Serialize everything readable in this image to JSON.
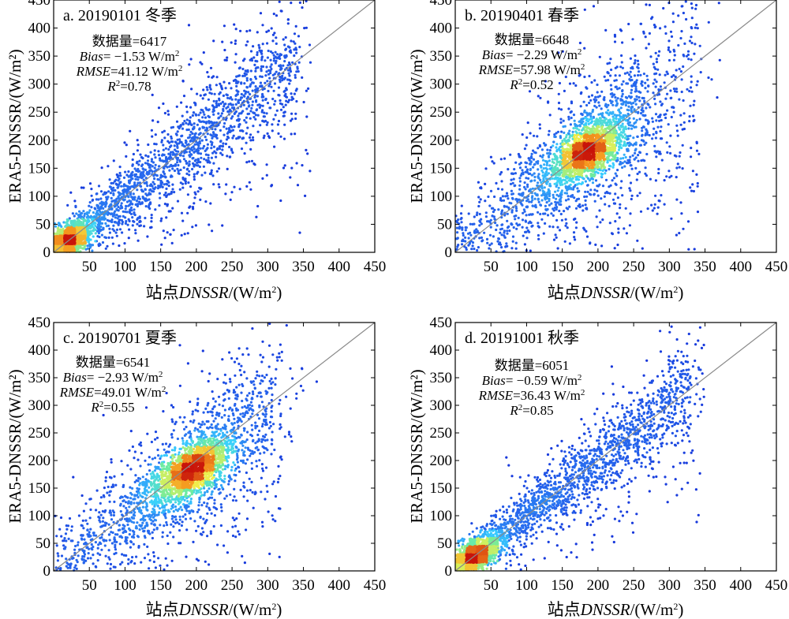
{
  "chart_data": [
    {
      "type": "scatter",
      "panel_label": "a. 20190101 冬季",
      "xlabel_prefix": "站点",
      "xlabel_italic": "DNSSR",
      "xlabel_unit": "/(W/m",
      "ylabel": "ERA5-DNSSR/(W/m²)",
      "xlim": [
        0,
        450
      ],
      "ylim": [
        0,
        450
      ],
      "xticks": [
        "50",
        "100",
        "150",
        "200",
        "250",
        "300",
        "350",
        "400",
        "450"
      ],
      "yticks": [
        "0",
        "50",
        "100",
        "150",
        "200",
        "250",
        "300",
        "350",
        "400",
        "450"
      ],
      "reference_line": "1:1",
      "stats": {
        "count_label": "数据量",
        "count": "=6417",
        "bias_label": "Bias",
        "bias": "= −1.53 W/m",
        "rmse_label": "RMSE",
        "rmse": "=41.12 W/m",
        "r2_label": "R",
        "r2": "=0.78"
      },
      "density_core": {
        "x": 20,
        "y": 20
      },
      "point_count": 6417
    },
    {
      "type": "scatter",
      "panel_label": "b. 20190401 春季",
      "xlabel_prefix": "站点",
      "xlabel_italic": "DNSSR",
      "xlabel_unit": "/(W/m",
      "ylabel": "ERA5-DNSSR/(W/m²)",
      "xlim": [
        0,
        450
      ],
      "ylim": [
        0,
        450
      ],
      "xticks": [
        "50",
        "100",
        "150",
        "200",
        "250",
        "300",
        "350",
        "400",
        "450"
      ],
      "yticks": [
        "0",
        "50",
        "100",
        "150",
        "200",
        "250",
        "300",
        "350",
        "400",
        "450"
      ],
      "reference_line": "1:1",
      "stats": {
        "count_label": "数据量",
        "count": "=6648",
        "bias_label": "Bias",
        "bias": "= −2.29 W/m",
        "rmse_label": "RMSE",
        "rmse": "=57.98 W/m",
        "r2_label": "R",
        "r2": "=0.52"
      },
      "density_core": {
        "x": 185,
        "y": 180
      },
      "point_count": 6648
    },
    {
      "type": "scatter",
      "panel_label": "c. 20190701 夏季",
      "xlabel_prefix": "站点",
      "xlabel_italic": "DNSSR",
      "xlabel_unit": "/(W/m",
      "ylabel": "ERA5-DNSSR/(W/m²)",
      "xlim": [
        0,
        450
      ],
      "ylim": [
        0,
        450
      ],
      "xticks": [
        "50",
        "100",
        "150",
        "200",
        "250",
        "300",
        "350",
        "400",
        "450"
      ],
      "yticks": [
        "0",
        "50",
        "100",
        "150",
        "200",
        "250",
        "300",
        "350",
        "400",
        "450"
      ],
      "reference_line": "1:1",
      "stats": {
        "count_label": "数据量",
        "count": "=6541",
        "bias_label": "Bias",
        "bias": "= −2.93 W/m",
        "rmse_label": "RMSE",
        "rmse": "=49.01 W/m",
        "r2_label": "R",
        "r2": "=0.55"
      },
      "density_core": {
        "x": 195,
        "y": 185
      },
      "point_count": 6541
    },
    {
      "type": "scatter",
      "panel_label": "d. 20191001 秋季",
      "xlabel_prefix": "站点",
      "xlabel_italic": "DNSSR",
      "xlabel_unit": "/(W/m",
      "ylabel": "ERA5-DNSSR/(W/m²)",
      "xlim": [
        0,
        450
      ],
      "ylim": [
        0,
        450
      ],
      "xticks": [
        "50",
        "100",
        "150",
        "200",
        "250",
        "300",
        "350",
        "400",
        "450"
      ],
      "yticks": [
        "0",
        "50",
        "100",
        "150",
        "200",
        "250",
        "300",
        "350",
        "400",
        "450"
      ],
      "reference_line": "1:1",
      "stats": {
        "count_label": "数据量",
        "count": "=6051",
        "bias_label": "Bias",
        "bias": "= −0.59 W/m",
        "rmse_label": "RMSE",
        "rmse": "=36.43 W/m",
        "r2_label": "R",
        "r2": "=0.85"
      },
      "density_core": {
        "x": 25,
        "y": 25
      },
      "point_count": 6051
    }
  ],
  "colors": {
    "scatter_low": "#1530d8",
    "scatter_mid": "#38d0ff",
    "scatter_midhigh": "#f0f04a",
    "scatter_high": "#d8140a",
    "reference_line": "#8a8a8a"
  }
}
